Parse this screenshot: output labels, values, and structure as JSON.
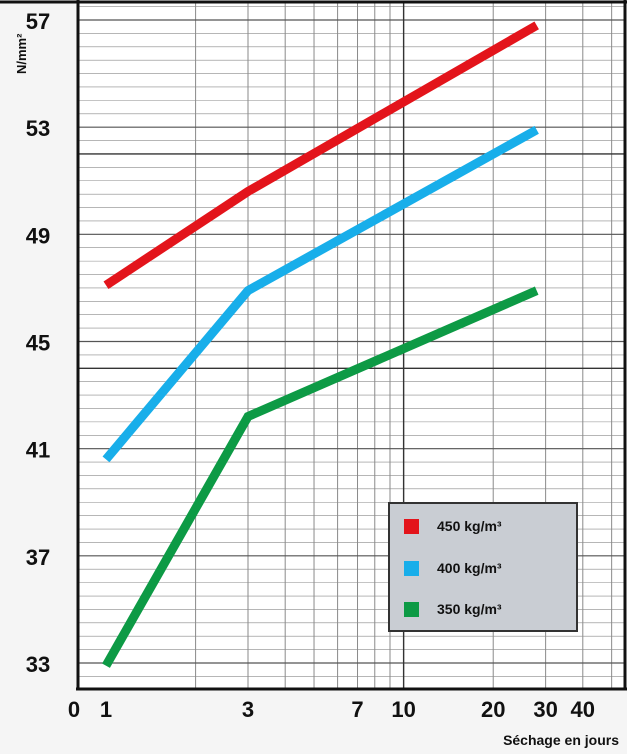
{
  "chart_data": {
    "type": "line",
    "title": "",
    "xlabel": "Séchage en jours",
    "ylabel": "N/mm²",
    "x_scale": "log",
    "x_ticks": [
      "0",
      "1",
      "3",
      "7",
      "10",
      "20",
      "30",
      "40"
    ],
    "y_ticks": [
      "33",
      "37",
      "41",
      "45",
      "49",
      "53",
      "57"
    ],
    "ylim": [
      32,
      57.5
    ],
    "grid": true,
    "legend_position": "bottom-right",
    "series": [
      {
        "name": "450 kg/m³",
        "color": "#e3141b",
        "x": [
          1,
          3,
          28
        ],
        "y": [
          47.1,
          50.6,
          56.8
        ]
      },
      {
        "name": "400 kg/m³",
        "color": "#18aeea",
        "x": [
          1,
          3,
          28
        ],
        "y": [
          40.6,
          46.9,
          52.9
        ]
      },
      {
        "name": "350 kg/m³",
        "color": "#0d9a45",
        "x": [
          1,
          3,
          28
        ],
        "y": [
          32.9,
          42.2,
          46.9
        ]
      }
    ]
  }
}
